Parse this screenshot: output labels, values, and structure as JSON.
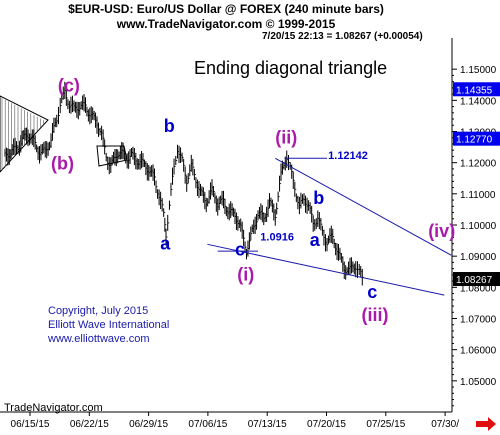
{
  "header": {
    "line1": "$EUR-USD:  Euro/US Dollar @ FOREX  (240 minute bars)",
    "line2": "www.TradeNavigator.com © 1999-2015",
    "line3": "7/20/15 22:13 = 1.08267 (+0.00054)"
  },
  "footer": {
    "brand": "TradeNavigator.com"
  },
  "chart_data": {
    "type": "line",
    "title": "Ending diagonal triangle",
    "xlabel": "",
    "ylabel": "",
    "ylim": [
      1.04,
      1.16
    ],
    "yticks": [
      "1.15000",
      "1.14000",
      "1.13000",
      "1.12000",
      "1.11000",
      "1.10000",
      "1.09000",
      "1.08000",
      "1.07000",
      "1.06000",
      "1.05000"
    ],
    "ytick_values": [
      1.15,
      1.14,
      1.13,
      1.12,
      1.11,
      1.1,
      1.09,
      1.08,
      1.07,
      1.06,
      1.05
    ],
    "xticks": [
      "06/15/15",
      "06/22/15",
      "06/29/15",
      "07/06/15",
      "07/13/15",
      "07/20/15",
      "07/25/15",
      "07/30/"
    ],
    "grid": false,
    "price_tags": [
      {
        "label": "1.14355",
        "value": 1.14355,
        "color": "#0000ee"
      },
      {
        "label": "1.12770",
        "value": 1.1277,
        "color": "#0000ee"
      },
      {
        "label": "1.08267",
        "value": 1.08267,
        "color": "#000000"
      }
    ],
    "series": [
      {
        "values": [
          [
            0,
            1.1212
          ],
          [
            0.5,
            1.1232
          ],
          [
            1,
            1.1258
          ],
          [
            1.5,
            1.1272
          ],
          [
            2,
            1.1282
          ],
          [
            2.5,
            1.1265
          ],
          [
            3,
            1.1245
          ],
          [
            3.5,
            1.1238
          ],
          [
            4,
            1.1262
          ],
          [
            4.5,
            1.1338
          ],
          [
            4.8,
            1.1395
          ],
          [
            5.2,
            1.1432
          ],
          [
            5.6,
            1.1388
          ],
          [
            6,
            1.1362
          ],
          [
            6.5,
            1.1378
          ],
          [
            7,
            1.1392
          ],
          [
            7.5,
            1.1352
          ],
          [
            8,
            1.1322
          ],
          [
            8.4,
            1.1282
          ],
          [
            8.8,
            1.1228
          ],
          [
            9.2,
            1.1198
          ],
          [
            9.8,
            1.1228
          ],
          [
            10.5,
            1.1212
          ],
          [
            11,
            1.1232
          ],
          [
            11.5,
            1.1212
          ],
          [
            12,
            1.1188
          ],
          [
            12.5,
            1.1172
          ],
          [
            13,
            1.1158
          ],
          [
            13.4,
            1.1102
          ],
          [
            13.8,
            1.1028
          ],
          [
            14,
            1.0962
          ],
          [
            14.3,
            1.1058
          ],
          [
            14.7,
            1.1182
          ],
          [
            15,
            1.1255
          ],
          [
            15.4,
            1.1212
          ],
          [
            15.8,
            1.1142
          ],
          [
            16.2,
            1.1178
          ],
          [
            16.6,
            1.1142
          ],
          [
            17,
            1.1112
          ],
          [
            17.5,
            1.1082
          ],
          [
            18,
            1.1102
          ],
          [
            18.5,
            1.1062
          ],
          [
            19,
            1.1082
          ],
          [
            19.5,
            1.1048
          ],
          [
            20,
            1.1028
          ],
          [
            20.5,
            1.0982
          ],
          [
            21,
            1.0925
          ],
          [
            21.5,
            1.0985
          ],
          [
            22,
            1.1032
          ],
          [
            22.5,
            1.1012
          ],
          [
            23,
            1.1078
          ],
          [
            23.5,
            1.1042
          ],
          [
            24,
            1.1152
          ],
          [
            24.5,
            1.1215
          ],
          [
            24.8,
            1.1178
          ],
          [
            25.2,
            1.1132
          ],
          [
            25.6,
            1.1062
          ],
          [
            26,
            1.1082
          ],
          [
            26.4,
            1.1052
          ],
          [
            26.8,
            1.1002
          ],
          [
            27.2,
            1.1032
          ],
          [
            27.6,
            1.0982
          ],
          [
            28,
            1.0942
          ],
          [
            28.5,
            1.0952
          ],
          [
            29,
            1.0912
          ],
          [
            29.5,
            1.0872
          ],
          [
            30,
            1.0852
          ],
          [
            30.5,
            1.0862
          ],
          [
            30.8,
            1.0845
          ],
          [
            31.2,
            1.0826
          ]
        ]
      }
    ],
    "annotations": [
      {
        "text": "(c)",
        "x": 4.6,
        "y": 1.1428,
        "color": "#aa1aaa"
      },
      {
        "text": "(b)",
        "x": 4.0,
        "y": 1.1178,
        "color": "#aa1aaa"
      },
      {
        "text": "b",
        "x": 13.8,
        "y": 1.1298,
        "color": "#0000cc"
      },
      {
        "text": "a",
        "x": 13.5,
        "y": 1.0922,
        "color": "#0000cc"
      },
      {
        "text": "(ii)",
        "x": 23.5,
        "y": 1.1262,
        "color": "#aa1aaa"
      },
      {
        "text": "1.12142",
        "x": 28.1,
        "y": 1.1212,
        "color": "#0000cc"
      },
      {
        "text": "b",
        "x": 26.8,
        "y": 1.1068,
        "color": "#0000cc"
      },
      {
        "text": "a",
        "x": 26.5,
        "y": 1.0932,
        "color": "#0000cc"
      },
      {
        "text": "1.0916",
        "x": 22.2,
        "y": 1.0951,
        "color": "#0000cc"
      },
      {
        "text": "c",
        "x": 20.0,
        "y": 1.0902,
        "color": "#0000cc"
      },
      {
        "text": "(i)",
        "x": 20.2,
        "y": 1.0822,
        "color": "#aa1aaa"
      },
      {
        "text": "(iv)",
        "x": 36.8,
        "y": 1.0962,
        "color": "#aa1aaa"
      },
      {
        "text": "c",
        "x": 31.5,
        "y": 1.0765,
        "color": "#0000cc"
      },
      {
        "text": "(iii)",
        "x": 31.0,
        "y": 1.0692,
        "color": "#aa1aaa"
      }
    ],
    "notes": [
      "Copyright, July 2015",
      "Elliott Wave International",
      "www.elliottwave.com"
    ]
  }
}
